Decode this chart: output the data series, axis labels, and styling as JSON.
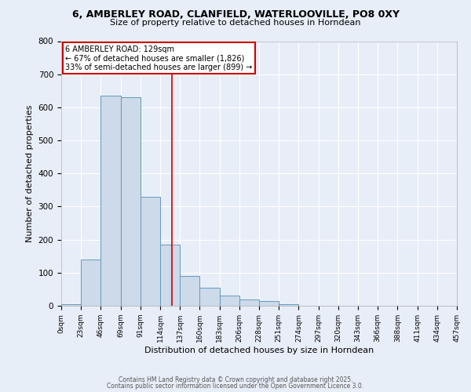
{
  "title_line1": "6, AMBERLEY ROAD, CLANFIELD, WATERLOOVILLE, PO8 0XY",
  "title_line2": "Size of property relative to detached houses in Horndean",
  "xlabel": "Distribution of detached houses by size in Horndean",
  "ylabel": "Number of detached properties",
  "bin_labels": [
    "0sqm",
    "23sqm",
    "46sqm",
    "69sqm",
    "91sqm",
    "114sqm",
    "137sqm",
    "160sqm",
    "183sqm",
    "206sqm",
    "228sqm",
    "251sqm",
    "274sqm",
    "297sqm",
    "320sqm",
    "343sqm",
    "366sqm",
    "388sqm",
    "411sqm",
    "434sqm",
    "457sqm"
  ],
  "bar_heights": [
    5,
    140,
    635,
    630,
    330,
    185,
    90,
    55,
    30,
    20,
    15,
    5,
    0,
    0,
    0,
    0,
    0,
    0,
    0,
    0
  ],
  "bar_color": "#ccdaea",
  "bar_edge_color": "#6699bb",
  "property_line_color": "#cc0000",
  "ylim": [
    0,
    800
  ],
  "yticks": [
    0,
    100,
    200,
    300,
    400,
    500,
    600,
    700,
    800
  ],
  "annotation_text": "6 AMBERLEY ROAD: 129sqm\n← 67% of detached houses are smaller (1,826)\n33% of semi-detached houses are larger (899) →",
  "annotation_box_color": "#ffffff",
  "annotation_box_edge": "#cc0000",
  "footer_line1": "Contains HM Land Registry data © Crown copyright and database right 2025.",
  "footer_line2": "Contains public sector information licensed under the Open Government Licence 3.0.",
  "background_color": "#e8eef8",
  "plot_bg_color": "#e8eef8",
  "bin_width": 23,
  "property_sqm": 129,
  "grid_color": "#ffffff"
}
